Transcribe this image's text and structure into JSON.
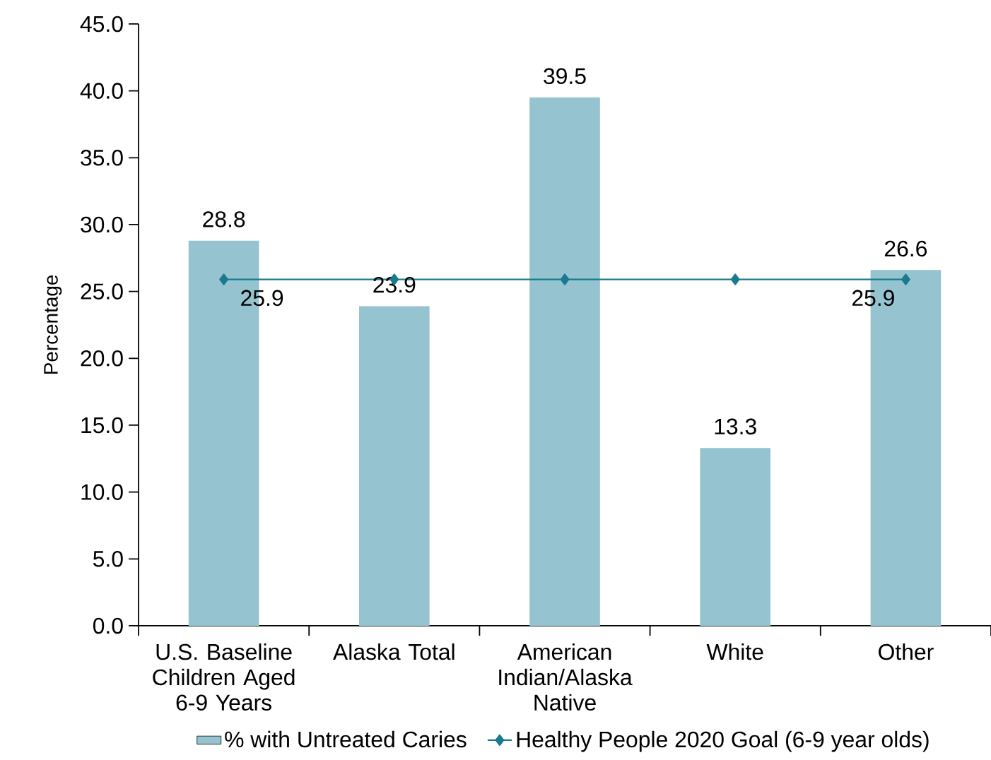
{
  "chart_data": {
    "type": "bar",
    "ylabel": "Percentage",
    "categories": [
      "U.S. Baseline Children Aged 6-9 Years",
      "Alaska Total",
      "American Indian/Alaska Native",
      "White",
      "Other"
    ],
    "series": [
      {
        "name": "% with Untreated Caries",
        "color": "#95c3cf",
        "values": [
          28.8,
          23.9,
          39.5,
          13.3,
          26.6
        ],
        "data_labels": true
      },
      {
        "name": "Healthy People 2020 Goal (6-9 year olds)",
        "type": "line",
        "color": "#1a7a90",
        "marker": "diamond",
        "values": [
          25.9,
          25.9,
          25.9,
          25.9,
          25.9
        ],
        "value_labels": [
          "25.9",
          null,
          null,
          null,
          "25.9"
        ]
      }
    ],
    "ylim": [
      0,
      45
    ],
    "yticks": [
      {
        "value": 0,
        "label": "0.0"
      },
      {
        "value": 5,
        "label": "5.0"
      },
      {
        "value": 10,
        "label": "10.0"
      },
      {
        "value": 15,
        "label": "15.0"
      },
      {
        "value": 20,
        "label": "20.0"
      },
      {
        "value": 25,
        "label": "25.0"
      },
      {
        "value": 30,
        "label": "30.0"
      },
      {
        "value": 35,
        "label": "35.0"
      },
      {
        "value": 40,
        "label": "40.0"
      },
      {
        "value": 45,
        "label": "45.0"
      }
    ],
    "grid": false,
    "legend": "bottom"
  }
}
